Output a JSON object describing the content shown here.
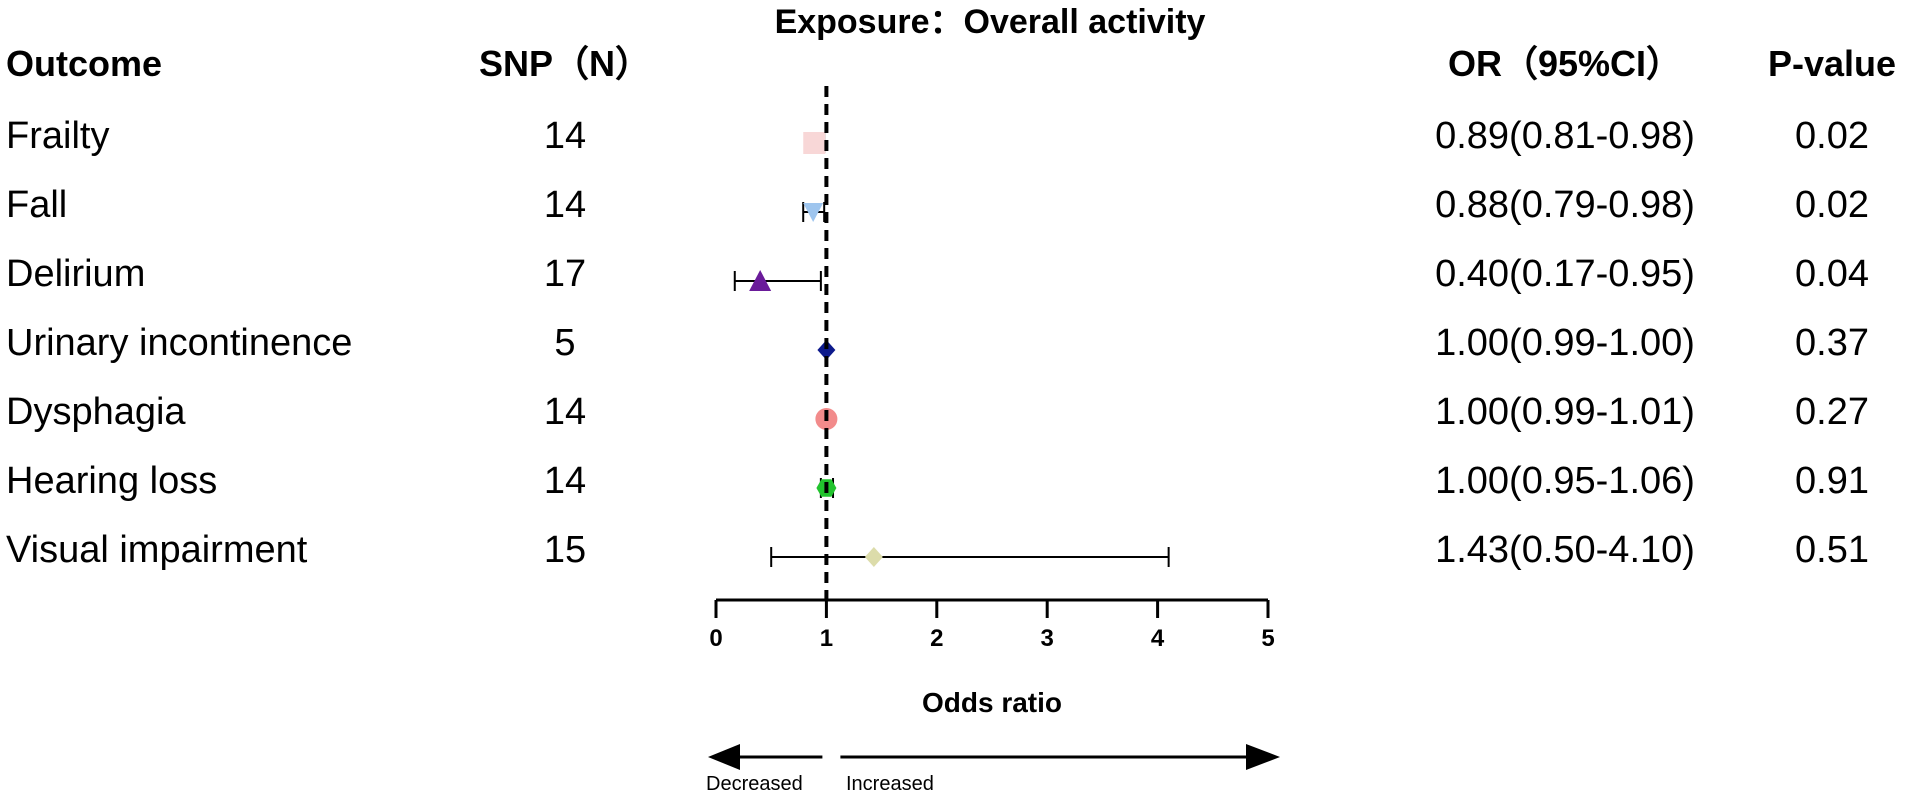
{
  "chart_data": {
    "type": "forest",
    "title": "Exposure：Overall activity",
    "xlabel": "Odds ratio",
    "xlim": [
      0,
      5
    ],
    "xticks": [
      0,
      1,
      2,
      3,
      4,
      5
    ],
    "reference_line": 1,
    "columns": {
      "outcome": "Outcome",
      "snp": "SNP（N）",
      "or_ci": "OR（95%CI）",
      "p": "P-value"
    },
    "rows": [
      {
        "outcome": "Frailty",
        "snp": "14",
        "or": 0.89,
        "lo": 0.81,
        "hi": 0.98,
        "or_ci": "0.89(0.81-0.98)",
        "p": "0.02",
        "marker": "square",
        "color": "#f8d7d7"
      },
      {
        "outcome": "Fall",
        "snp": "14",
        "or": 0.88,
        "lo": 0.79,
        "hi": 0.98,
        "or_ci": "0.88(0.79-0.98)",
        "p": "0.02",
        "marker": "triangle-down",
        "color": "#9ec5ee"
      },
      {
        "outcome": "Delirium",
        "snp": "17",
        "or": 0.4,
        "lo": 0.17,
        "hi": 0.95,
        "or_ci": "0.40(0.17-0.95)",
        "p": "0.04",
        "marker": "triangle-up",
        "color": "#6a1b9a"
      },
      {
        "outcome": "Urinary incontinence",
        "snp": "5",
        "or": 1.0,
        "lo": 0.99,
        "hi": 1.0,
        "or_ci": "1.00(0.99-1.00)",
        "p": "0.37",
        "marker": "diamond",
        "color": "#0d1a8c"
      },
      {
        "outcome": "Dysphagia",
        "snp": "14",
        "or": 1.0,
        "lo": 0.99,
        "hi": 1.01,
        "or_ci": "1.00(0.99-1.01)",
        "p": "0.27",
        "marker": "circle",
        "color": "#f28b8b"
      },
      {
        "outcome": "Hearing loss",
        "snp": "14",
        "or": 1.0,
        "lo": 0.95,
        "hi": 1.06,
        "or_ci": "1.00(0.95-1.06)",
        "p": "0.91",
        "marker": "hexagon",
        "color": "#22c32e"
      },
      {
        "outcome": "Visual impairment",
        "snp": "15",
        "or": 1.43,
        "lo": 0.5,
        "hi": 4.1,
        "or_ci": "1.43(0.50-4.10)",
        "p": "0.51",
        "marker": "diamond",
        "color": "#dcdcaa"
      }
    ],
    "arrows": {
      "left": "Decreased",
      "right": "Increased"
    }
  }
}
